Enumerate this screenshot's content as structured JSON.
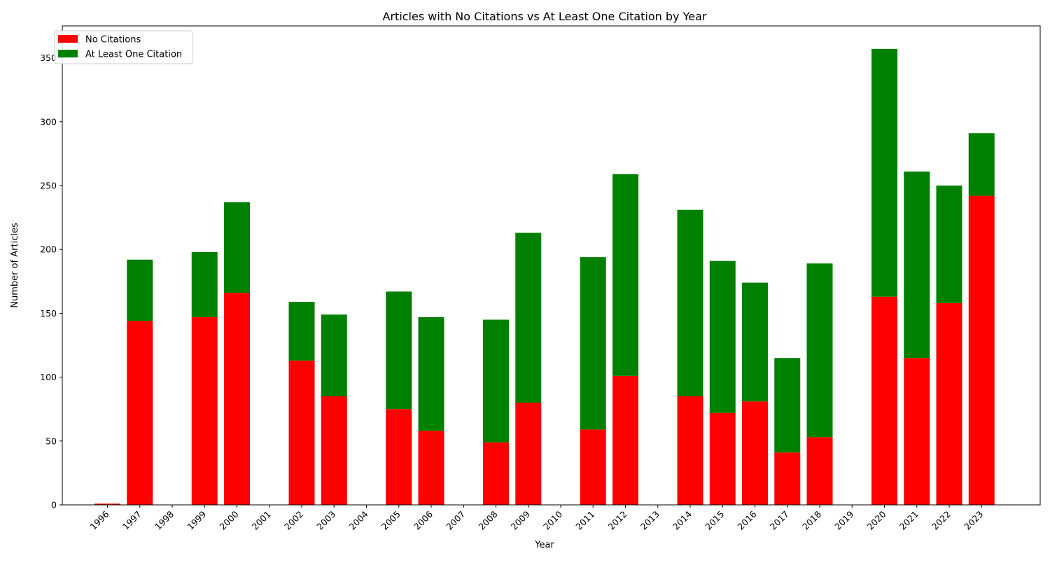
{
  "chart_data": {
    "type": "bar",
    "stacked": true,
    "title": "Articles with No Citations vs At Least One Citation by Year",
    "xlabel": "Year",
    "ylabel": "Number of Articles",
    "categories": [
      "1996",
      "1997",
      "1998",
      "1999",
      "2000",
      "2001",
      "2002",
      "2003",
      "2004",
      "2005",
      "2006",
      "2007",
      "2008",
      "2009",
      "2010",
      "2011",
      "2012",
      "2013",
      "2014",
      "2015",
      "2016",
      "2017",
      "2018",
      "2019",
      "2020",
      "2021",
      "2022",
      "2023"
    ],
    "series": [
      {
        "name": "No Citations",
        "color": "#ff0000",
        "values": [
          1,
          144,
          0,
          147,
          166,
          0,
          113,
          85,
          0,
          75,
          58,
          0,
          49,
          80,
          0,
          59,
          101,
          0,
          85,
          72,
          81,
          41,
          53,
          0,
          163,
          115,
          158,
          242
        ]
      },
      {
        "name": "At Least One Citation",
        "color": "#008000",
        "values": [
          0,
          48,
          0,
          51,
          71,
          0,
          46,
          64,
          0,
          92,
          89,
          0,
          96,
          133,
          0,
          135,
          158,
          0,
          146,
          119,
          93,
          74,
          136,
          0,
          194,
          146,
          92,
          49
        ]
      }
    ],
    "ylim": [
      0,
      375
    ],
    "yticks": [
      0,
      50,
      100,
      150,
      200,
      250,
      300,
      350
    ],
    "grid": false,
    "legend_position": "top-left"
  }
}
